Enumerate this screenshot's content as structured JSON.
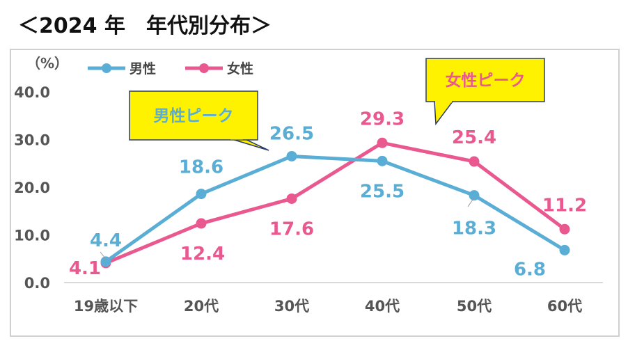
{
  "title": "＜2024 年　年代別分布＞",
  "chart_data": {
    "type": "line",
    "title": "＜2024 年　年代別分布＞",
    "unit_label": "（%）",
    "categories": [
      "19歳以下",
      "20代",
      "30代",
      "40代",
      "50代",
      "60代"
    ],
    "ylim": [
      0,
      40
    ],
    "yticks": [
      "0.0",
      "10.0",
      "20.0",
      "30.0",
      "40.0"
    ],
    "series": [
      {
        "name": "男性",
        "color": "#5aaed6",
        "values": [
          4.4,
          18.6,
          26.5,
          25.5,
          18.3,
          6.8
        ],
        "labels": [
          "4.4",
          "18.6",
          "26.5",
          "25.5",
          "18.3",
          "6.8"
        ]
      },
      {
        "name": "女性",
        "color": "#e9598f",
        "values": [
          4.1,
          12.4,
          17.6,
          29.3,
          25.4,
          11.2
        ],
        "labels": [
          "4.1",
          "12.4",
          "17.6",
          "29.3",
          "25.4",
          "11.2"
        ]
      }
    ],
    "legend_position": "top-left",
    "annotations": [
      {
        "text": "男性ピーク",
        "series": "男性",
        "text_color": "#5aaed6",
        "fill": "#fff200"
      },
      {
        "text": "女性ピーク",
        "series": "女性",
        "text_color": "#e9598f",
        "fill": "#fff200"
      }
    ]
  }
}
